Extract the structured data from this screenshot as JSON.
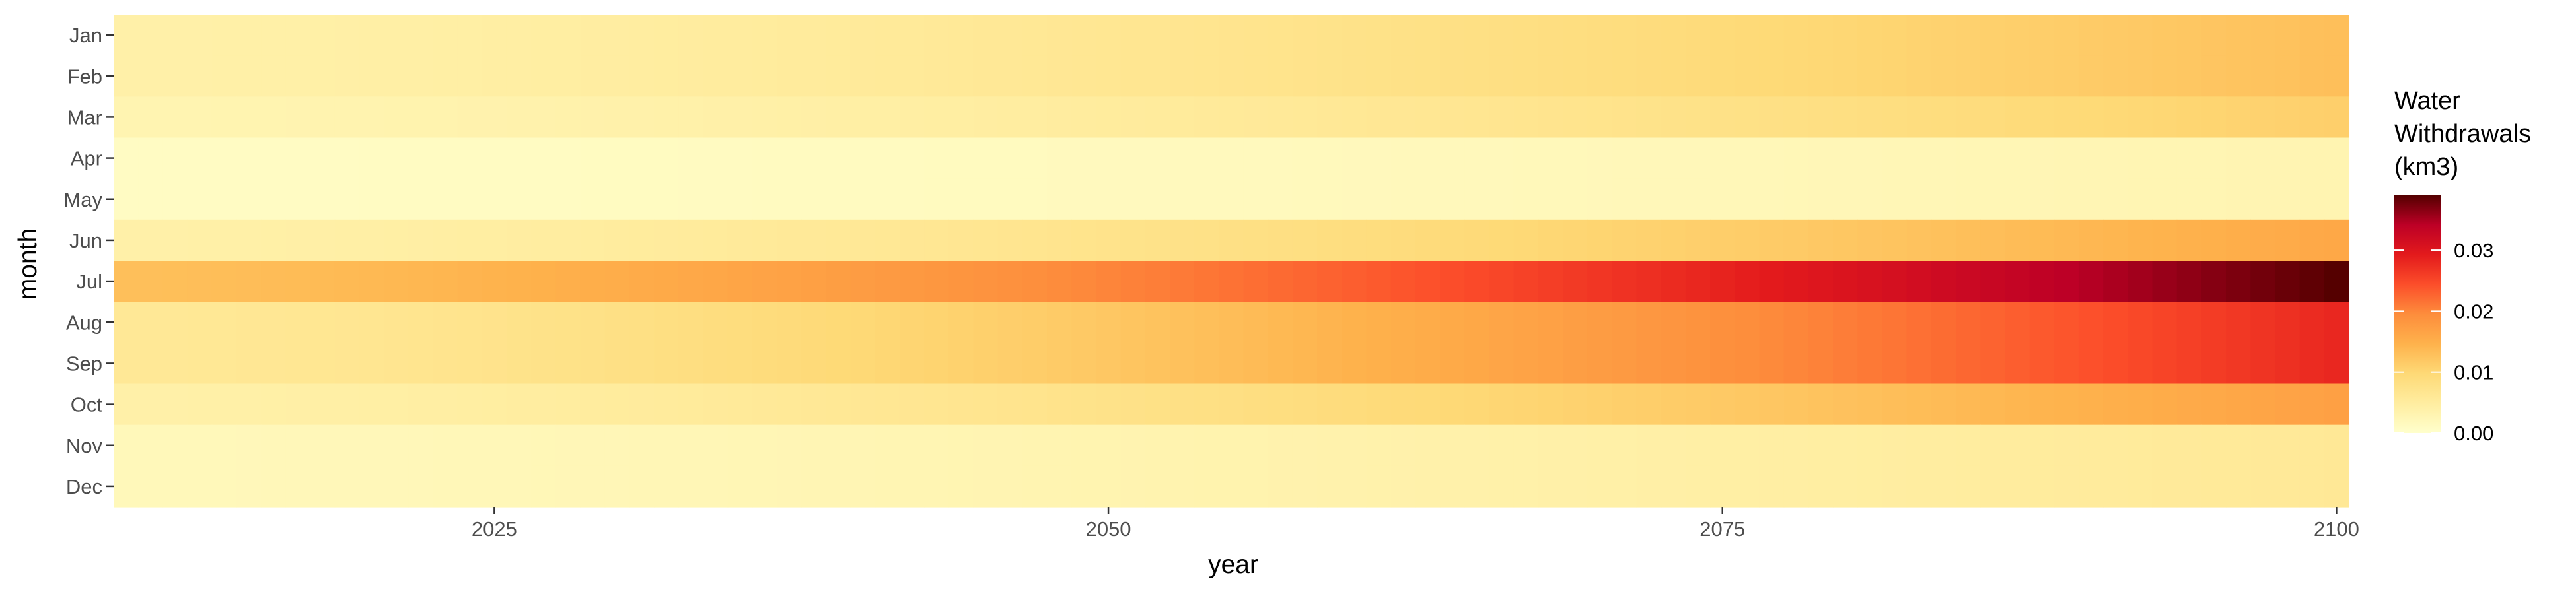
{
  "chart_data": {
    "type": "heatmap",
    "title": "",
    "xlabel": "year",
    "ylabel": "month",
    "x_range": [
      2010,
      2100
    ],
    "x_ticks": [
      2025,
      2050,
      2075,
      2100
    ],
    "x_tick_labels": [
      "2025",
      "2050",
      "2075",
      "2100"
    ],
    "months": [
      "Jan",
      "Feb",
      "Mar",
      "Apr",
      "May",
      "Jun",
      "Jul",
      "Aug",
      "Sep",
      "Oct",
      "Nov",
      "Dec"
    ],
    "month_values_2010": [
      0.004,
      0.004,
      0.003,
      0.001,
      0.001,
      0.004,
      0.013,
      0.006,
      0.006,
      0.004,
      0.002,
      0.002
    ],
    "month_values_2100": [
      0.013,
      0.013,
      0.011,
      0.003,
      0.003,
      0.016,
      0.039,
      0.028,
      0.028,
      0.017,
      0.006,
      0.006
    ],
    "growth_shape_exponent": 1.6,
    "legend": {
      "title": [
        "Water",
        "Withdrawals",
        "(km3)"
      ],
      "ticks": [
        0.0,
        0.01,
        0.02,
        0.03
      ],
      "tick_labels": [
        "0.00",
        "0.01",
        "0.02",
        "0.03"
      ],
      "range": [
        0,
        0.039
      ],
      "position": "right"
    },
    "colorscale": {
      "name": "YlOrRd",
      "stops": [
        [
          0.0,
          "#ffffcc"
        ],
        [
          0.125,
          "#ffeda0"
        ],
        [
          0.25,
          "#fed976"
        ],
        [
          0.375,
          "#feb24c"
        ],
        [
          0.5,
          "#fd8d3c"
        ],
        [
          0.625,
          "#fc4e2a"
        ],
        [
          0.75,
          "#e31a1c"
        ],
        [
          0.875,
          "#bd0026"
        ],
        [
          1.0,
          "#550000"
        ]
      ]
    },
    "grid": false
  }
}
